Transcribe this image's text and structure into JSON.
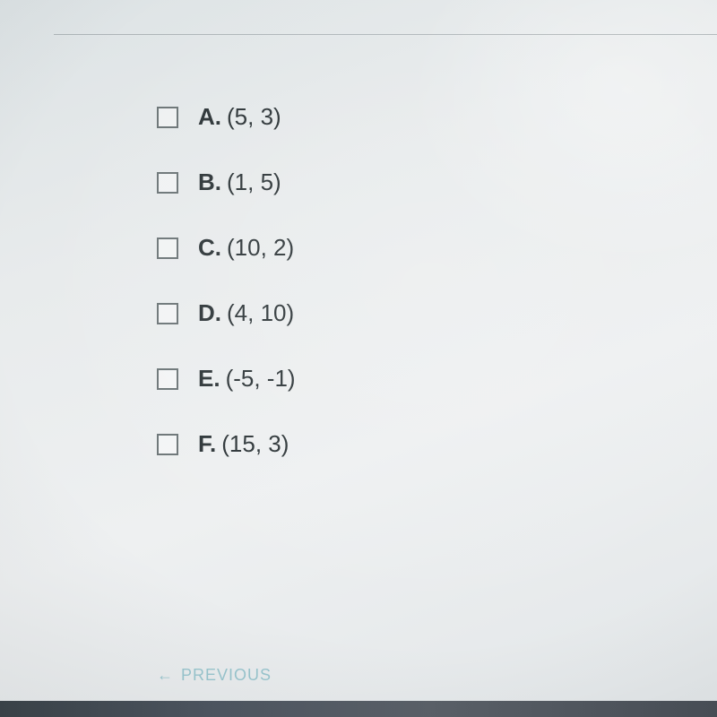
{
  "options": [
    {
      "letter": "A.",
      "value": "(5, 3)"
    },
    {
      "letter": "B.",
      "value": "(1, 5)"
    },
    {
      "letter": "C.",
      "value": "(10, 2)"
    },
    {
      "letter": "D.",
      "value": "(4, 10)"
    },
    {
      "letter": "E.",
      "value": "(-5, -1)"
    },
    {
      "letter": "F.",
      "value": "(15, 3)"
    }
  ],
  "previous_label": "PREVIOUS",
  "arrow_glyph": "←"
}
